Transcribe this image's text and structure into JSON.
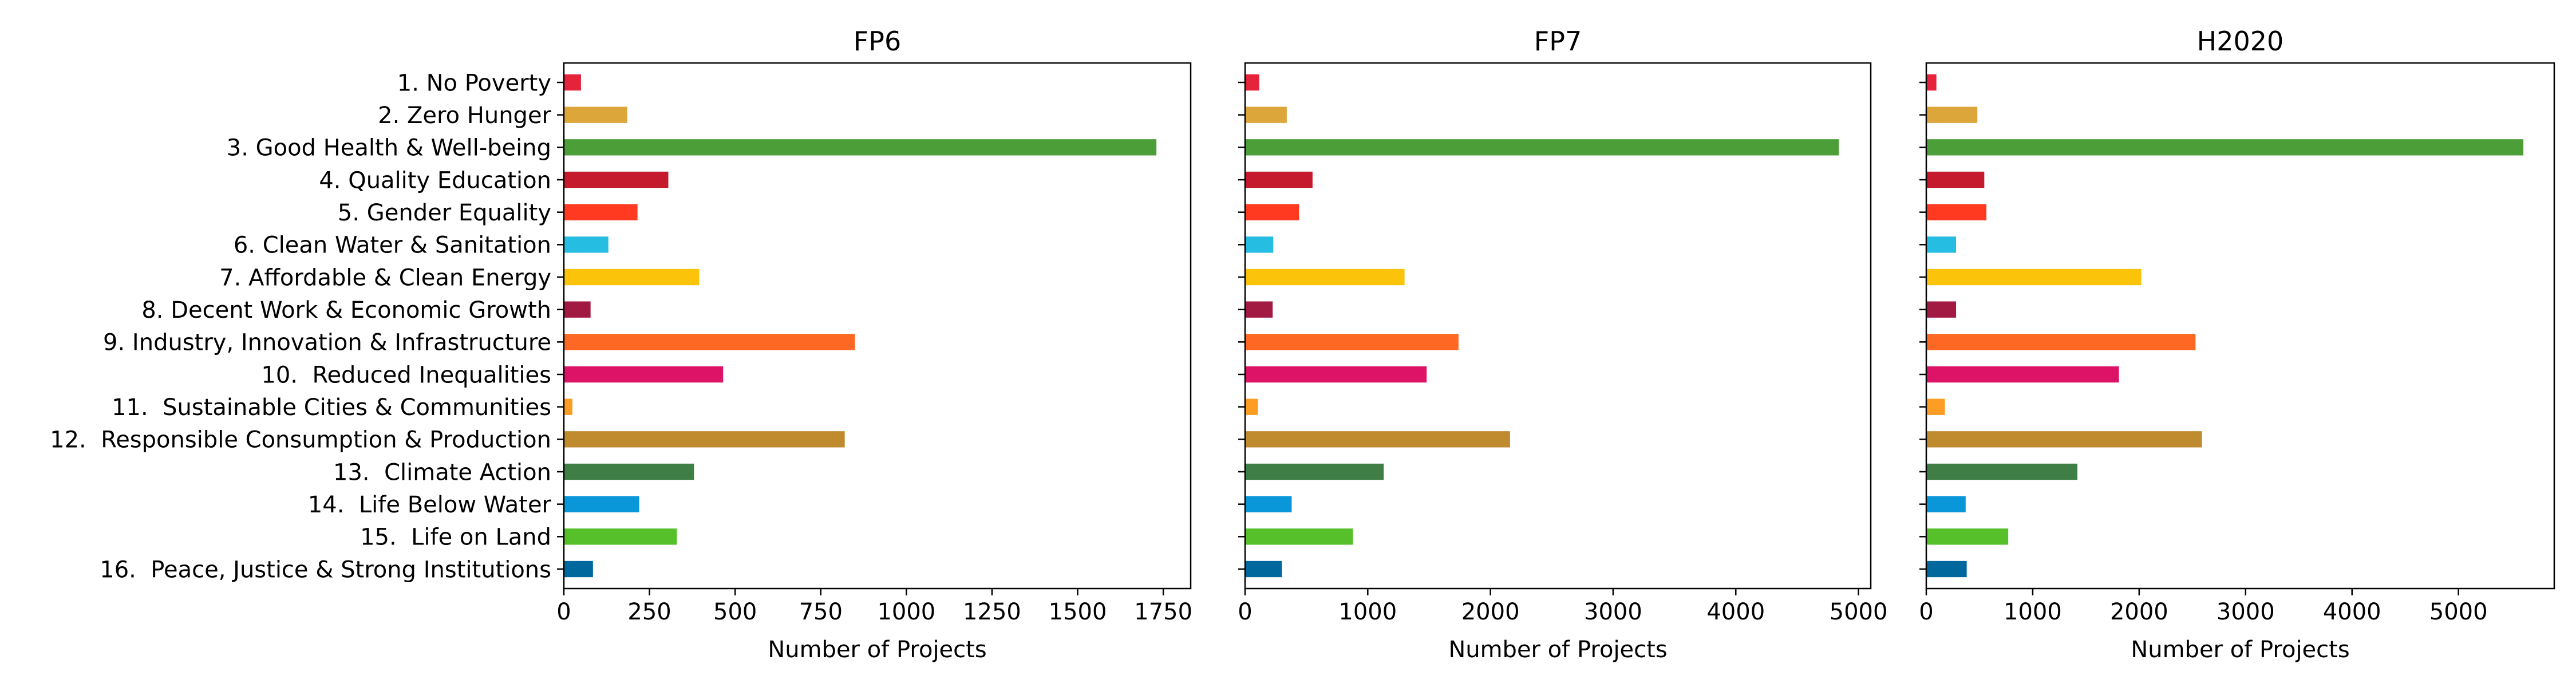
{
  "chart_data": [
    {
      "type": "bar",
      "orientation": "horizontal",
      "title": "FP6",
      "xlabel": "Number of Projects",
      "ylabel": "",
      "xlim": [
        0,
        1830
      ],
      "xticks": [
        0,
        250,
        500,
        750,
        1000,
        1250,
        1500,
        1750
      ],
      "categories": [
        "1. No Poverty",
        "2. Zero Hunger",
        "3. Good Health & Well-being",
        "4. Quality Education",
        "5. Gender Equality",
        "6. Clean Water & Sanitation",
        "7. Affordable & Clean Energy",
        "8. Decent Work & Economic Growth",
        "9. Industry, Innovation & Infrastructure",
        "10.  Reduced Inequalities",
        "11.  Sustainable Cities & Communities",
        "12.  Responsible Consumption & Production",
        "13.  Climate Action",
        "14.  Life Below Water",
        "15.  Life on Land",
        "16.  Peace, Justice & Strong Institutions"
      ],
      "values": [
        50,
        185,
        1730,
        305,
        215,
        130,
        395,
        78,
        850,
        465,
        25,
        820,
        380,
        220,
        330,
        85
      ],
      "show_category_labels": true,
      "grid": false,
      "legend": "none"
    },
    {
      "type": "bar",
      "orientation": "horizontal",
      "title": "FP7",
      "xlabel": "Number of Projects",
      "ylabel": "",
      "xlim": [
        0,
        5100
      ],
      "xticks": [
        0,
        1000,
        2000,
        3000,
        4000,
        5000
      ],
      "categories": [
        "1. No Poverty",
        "2. Zero Hunger",
        "3. Good Health & Well-being",
        "4. Quality Education",
        "5. Gender Equality",
        "6. Clean Water & Sanitation",
        "7. Affordable & Clean Energy",
        "8. Decent Work & Economic Growth",
        "9. Industry, Innovation & Infrastructure",
        "10.  Reduced Inequalities",
        "11.  Sustainable Cities & Communities",
        "12.  Responsible Consumption & Production",
        "13.  Climate Action",
        "14.  Life Below Water",
        "15.  Life on Land",
        "16.  Peace, Justice & Strong Institutions"
      ],
      "values": [
        115,
        340,
        4840,
        550,
        440,
        230,
        1300,
        225,
        1740,
        1480,
        105,
        2160,
        1130,
        380,
        880,
        300
      ],
      "show_category_labels": false,
      "grid": false,
      "legend": "none"
    },
    {
      "type": "bar",
      "orientation": "horizontal",
      "title": "H2020",
      "xlabel": "Number of Projects",
      "ylabel": "",
      "xlim": [
        0,
        5900
      ],
      "xticks": [
        0,
        1000,
        2000,
        3000,
        4000,
        5000
      ],
      "categories": [
        "1. No Poverty",
        "2. Zero Hunger",
        "3. Good Health & Well-being",
        "4. Quality Education",
        "5. Gender Equality",
        "6. Clean Water & Sanitation",
        "7. Affordable & Clean Energy",
        "8. Decent Work & Economic Growth",
        "9. Industry, Innovation & Infrastructure",
        "10.  Reduced Inequalities",
        "11.  Sustainable Cities & Communities",
        "12.  Responsible Consumption & Production",
        "13.  Climate Action",
        "14.  Life Below Water",
        "15.  Life on Land",
        "16.  Peace, Justice & Strong Institutions"
      ],
      "values": [
        95,
        480,
        5610,
        545,
        565,
        280,
        2020,
        280,
        2530,
        1810,
        175,
        2590,
        1420,
        370,
        770,
        380
      ],
      "show_category_labels": false,
      "grid": false,
      "legend": "none"
    }
  ],
  "colors": [
    "#e5243b",
    "#dda63a",
    "#4c9f38",
    "#c5192d",
    "#ff3a21",
    "#26bde2",
    "#fcc30b",
    "#a21942",
    "#fd6925",
    "#dd1367",
    "#fd9d24",
    "#bf8b2e",
    "#3f7e44",
    "#0a97d9",
    "#56c02b",
    "#00689d"
  ]
}
